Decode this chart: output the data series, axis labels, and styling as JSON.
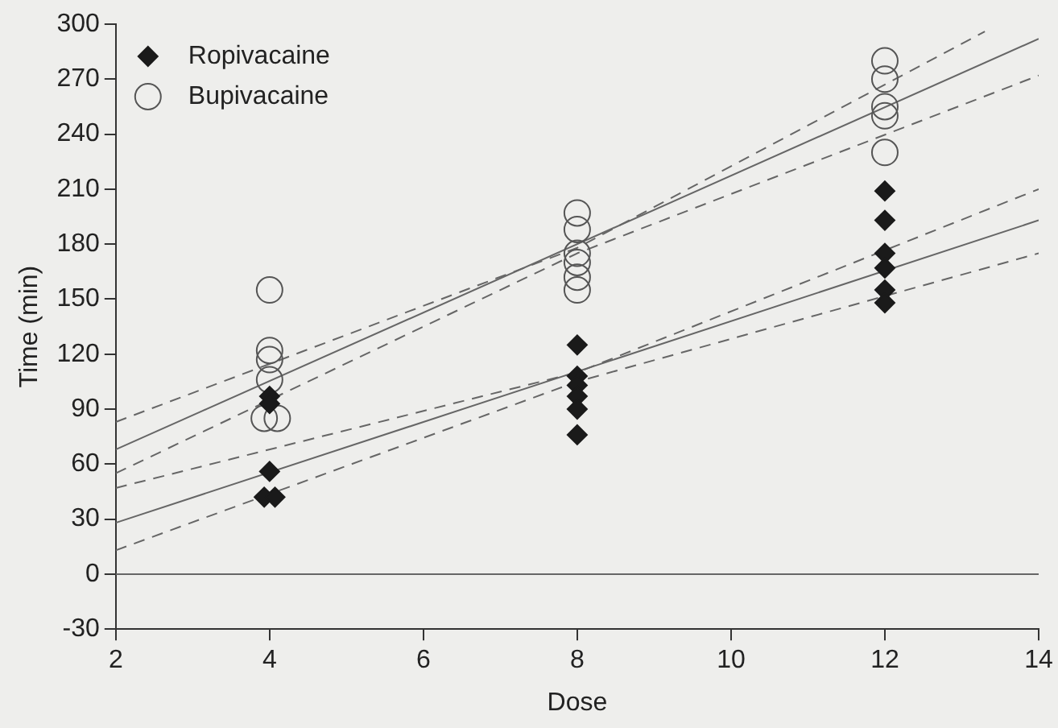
{
  "chart_data": {
    "type": "scatter",
    "xlabel": "Dose",
    "ylabel": "Time (min)",
    "xlim": [
      2,
      14
    ],
    "xticks": [
      2,
      4,
      6,
      8,
      10,
      12,
      14
    ],
    "ylim": [
      -30,
      300
    ],
    "yticks": [
      -30,
      0,
      30,
      60,
      90,
      120,
      150,
      180,
      210,
      240,
      270,
      300
    ],
    "grid": false,
    "legend": "top left",
    "series": [
      {
        "name": "Ropivacaine",
        "marker": "diamond",
        "color": "#1a1a1a",
        "x": [
          4,
          4,
          4,
          3.93,
          4.07,
          8,
          8,
          8,
          8,
          8,
          8,
          12,
          12,
          12,
          12,
          12,
          12
        ],
        "values": [
          97,
          93,
          56,
          42,
          42,
          125,
          108,
          103,
          97,
          90,
          76,
          209,
          193,
          175,
          167,
          155,
          148
        ]
      },
      {
        "name": "Bupivacaine",
        "marker": "circle",
        "color": "#555555",
        "x": [
          4,
          4,
          4,
          4,
          3.93,
          4.1,
          8,
          8,
          8,
          8,
          8,
          8,
          12,
          12,
          12,
          12,
          12
        ],
        "values": [
          155,
          122,
          117,
          106,
          85,
          85,
          197,
          188,
          175,
          170,
          162,
          155,
          280,
          270,
          255,
          250,
          230
        ]
      },
      {
        "type": "line",
        "marker": "none",
        "line_style": "solid",
        "color": "#666666",
        "x": [
          2,
          14
        ],
        "values": [
          68,
          292
        ]
      },
      {
        "type": "line",
        "marker": "none",
        "line_style": "dashed",
        "color": "#666666",
        "x": [
          2,
          8,
          13.3
        ],
        "values": [
          83,
          178,
          296
        ]
      },
      {
        "type": "line",
        "marker": "none",
        "line_style": "dashed",
        "color": "#666666",
        "x": [
          2,
          8,
          14
        ],
        "values": [
          55,
          175,
          272
        ]
      },
      {
        "type": "line",
        "marker": "none",
        "line_style": "solid",
        "color": "#666666",
        "x": [
          2,
          14
        ],
        "values": [
          28,
          193
        ]
      },
      {
        "type": "line",
        "marker": "none",
        "line_style": "dashed",
        "color": "#666666",
        "x": [
          2,
          8,
          14
        ],
        "values": [
          47,
          110,
          210
        ]
      },
      {
        "type": "line",
        "marker": "none",
        "line_style": "dashed",
        "color": "#666666",
        "x": [
          2,
          8,
          14
        ],
        "values": [
          13,
          105,
          175
        ]
      }
    ],
    "ref_lines": [
      {
        "axis": "y",
        "value": 0,
        "color": "#666666",
        "line_style": "solid"
      }
    ]
  }
}
